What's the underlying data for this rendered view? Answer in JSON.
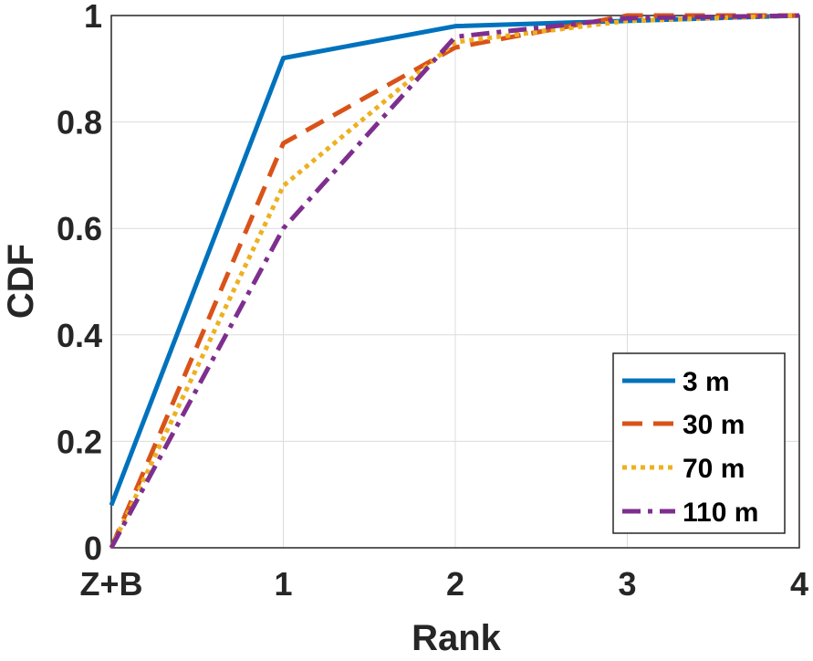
{
  "chart_data": {
    "type": "line",
    "title": "",
    "xlabel": "Rank",
    "ylabel": "CDF",
    "x": [
      0,
      1,
      2,
      3,
      4
    ],
    "xtick_labels": [
      "Z+B",
      "1",
      "2",
      "3",
      "4"
    ],
    "yticks": [
      0,
      0.2,
      0.4,
      0.6,
      0.8,
      1
    ],
    "ytick_labels": [
      "0",
      "0.2",
      "0.4",
      "0.6",
      "0.8",
      "1"
    ],
    "xlim": [
      0,
      4
    ],
    "ylim": [
      0,
      1
    ],
    "grid": true,
    "legend_position": "bottom-right",
    "series": [
      {
        "name": "3 m",
        "values": [
          0.08,
          0.92,
          0.98,
          0.99,
          1.0
        ],
        "color": "#0072BD",
        "style": "solid"
      },
      {
        "name": "30 m",
        "values": [
          0.0,
          0.76,
          0.94,
          1.0,
          1.0
        ],
        "color": "#D95319",
        "style": "dashed"
      },
      {
        "name": "70 m",
        "values": [
          0.0,
          0.68,
          0.95,
          0.99,
          1.0
        ],
        "color": "#EDB120",
        "style": "dotted"
      },
      {
        "name": "110 m",
        "values": [
          0.0,
          0.6,
          0.96,
          0.995,
          1.0
        ],
        "color": "#7E2F8E",
        "style": "dashdot"
      }
    ]
  }
}
